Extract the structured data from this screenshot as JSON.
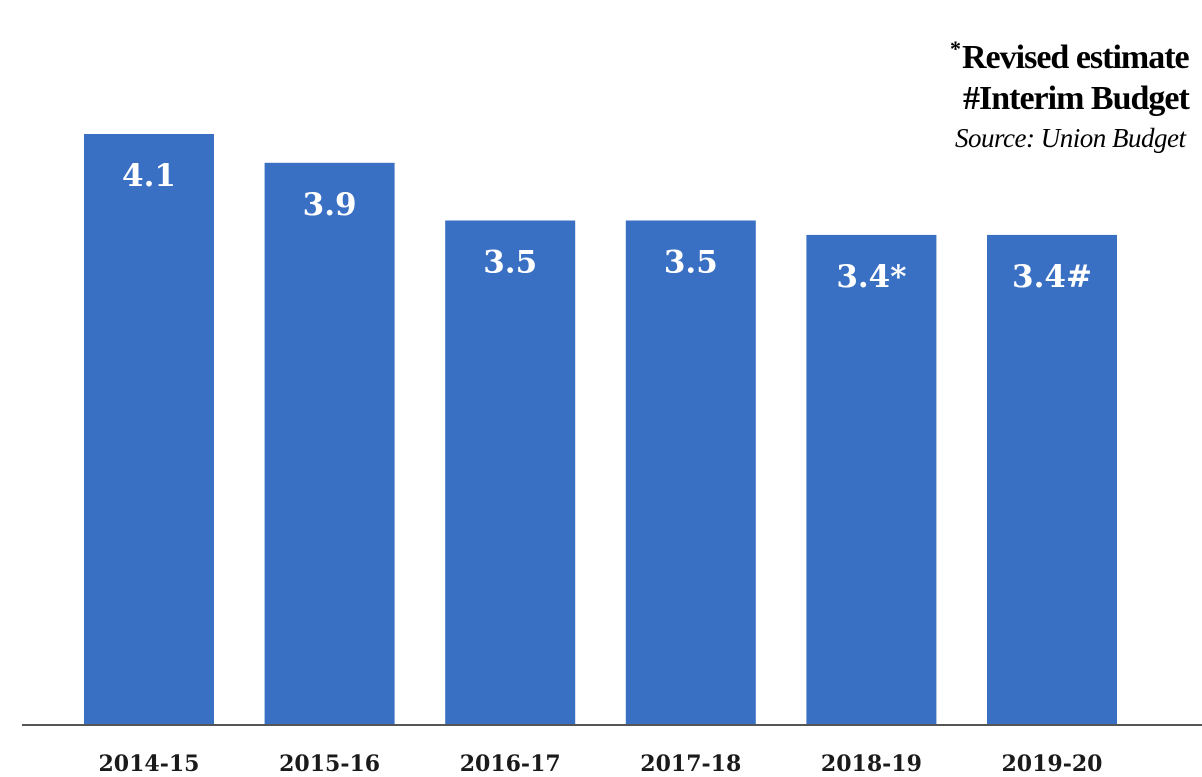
{
  "notes": {
    "revised_mark": "*",
    "revised": "Revised estimate",
    "interim": "#Interim Budget",
    "source": "Source: Union Budget"
  },
  "colors": {
    "bar": "#3a70c4",
    "axis": "#555555",
    "label": "#ffffff"
  },
  "chart_data": {
    "type": "bar",
    "categories": [
      "2014-15",
      "2015-16",
      "2016-17",
      "2017-18",
      "2018-19",
      "2019-20"
    ],
    "values": [
      4.1,
      3.9,
      3.5,
      3.5,
      3.4,
      3.4
    ],
    "data_labels": [
      "4.1",
      "3.9",
      "3.5",
      "3.5",
      "3.4*",
      "3.4#"
    ],
    "title": "",
    "xlabel": "",
    "ylabel": "",
    "ylim": [
      0,
      4.1
    ],
    "grid": false,
    "legend": "none"
  }
}
